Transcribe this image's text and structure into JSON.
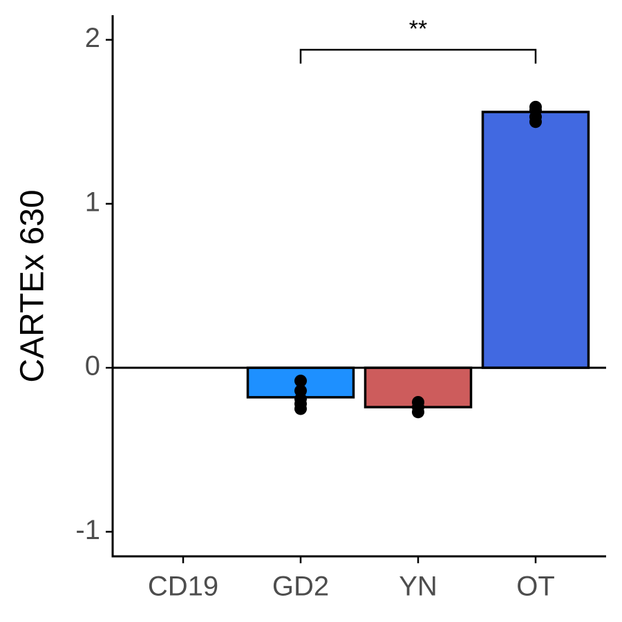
{
  "chart_data": {
    "type": "bar",
    "y_label": "CARTEx 630",
    "categories": [
      "CD19",
      "GD2",
      "YN",
      "OT"
    ],
    "values": [
      0,
      -0.18,
      -0.24,
      1.56
    ],
    "colors": [
      "#ffffff",
      "#1e90ff",
      "#cd5c5c",
      "#4169e1"
    ],
    "points": [
      [],
      [
        -0.08,
        -0.14,
        -0.19,
        -0.22,
        -0.25
      ],
      [
        -0.21,
        -0.24,
        -0.27
      ],
      [
        1.59,
        1.57,
        1.53,
        1.5
      ]
    ],
    "ylim": [
      -1.15,
      2.15
    ],
    "yticks": [
      -1,
      0,
      1,
      2
    ],
    "hline": 0,
    "annotation": {
      "text": "**",
      "from": 1,
      "to": 3
    }
  }
}
